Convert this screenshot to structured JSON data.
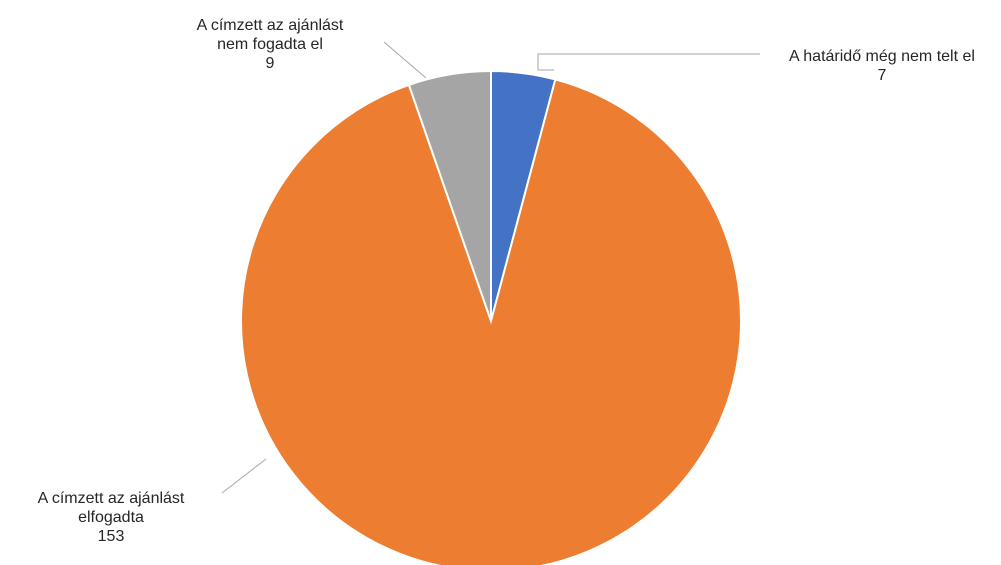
{
  "chart_data": {
    "type": "pie",
    "title": "",
    "start_angle_deg": 0,
    "direction": "clockwise",
    "legend": "none",
    "slices": [
      {
        "label_lines": [
          "A határidő még nem telt el"
        ],
        "value": 7,
        "color": "#4472c4"
      },
      {
        "label_lines": [
          "A címzett az ajánlást",
          "elfogadta"
        ],
        "value": 153,
        "color": "#ed7d31"
      },
      {
        "label_lines": [
          "A címzett az ajánlást",
          "nem fogadta el"
        ],
        "value": 9,
        "color": "#a5a5a5"
      }
    ]
  }
}
